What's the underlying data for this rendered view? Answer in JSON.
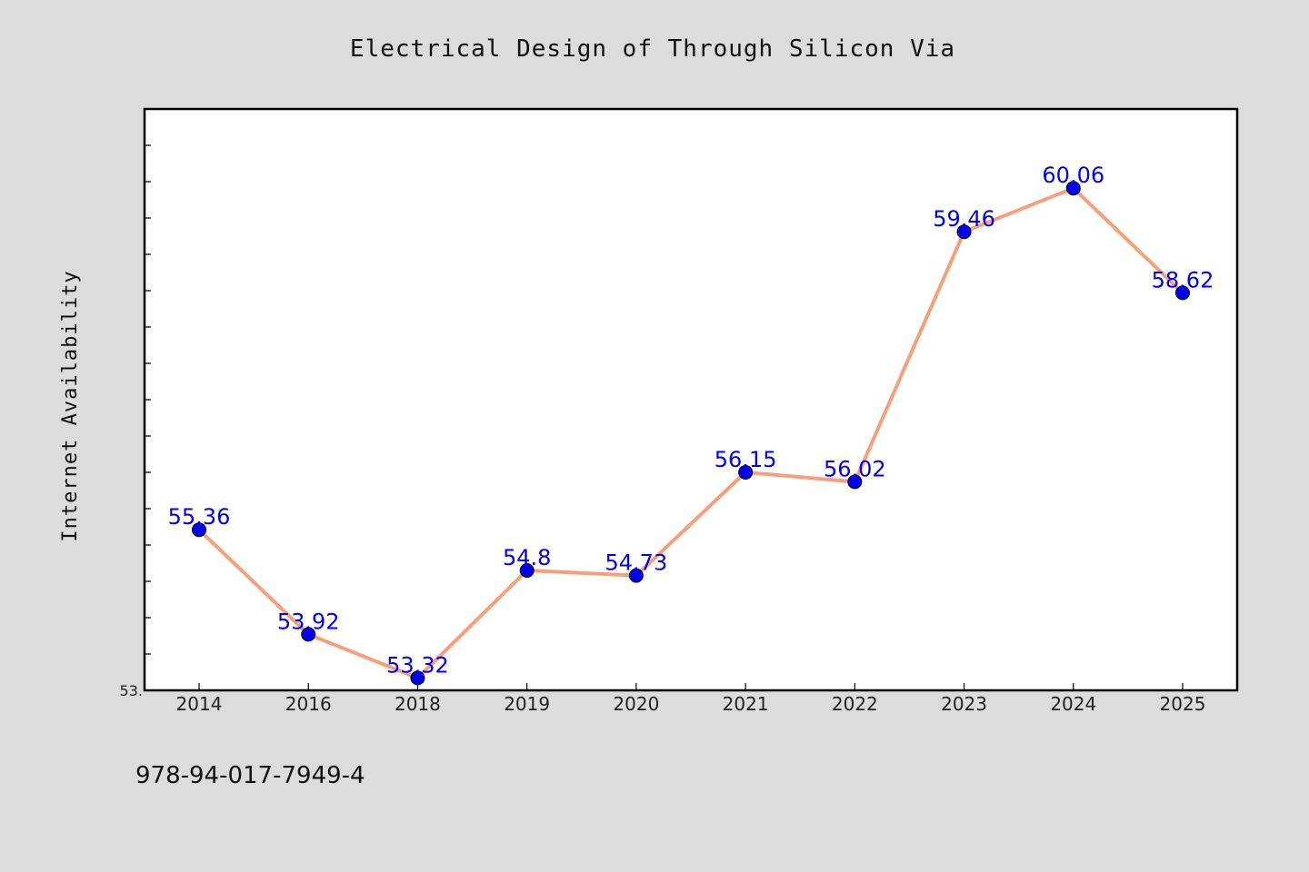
{
  "colors": {
    "background": "#dcdcdc",
    "plot_background": "#ffffff",
    "line": "#f5a07a",
    "marker": "#0000ee",
    "data_label": "#0000ee",
    "axis": "#000000"
  },
  "footer": {
    "code": "978-94-017-7949-4"
  },
  "chart_data": {
    "type": "line",
    "title": "Electrical Design of Through Silicon Via",
    "xlabel": "",
    "ylabel": "Internet Availability",
    "categories": [
      "2014",
      "2016",
      "2018",
      "2019",
      "2020",
      "2021",
      "2022",
      "2023",
      "2024",
      "2025"
    ],
    "series": [
      {
        "values": [
          55.36,
          53.92,
          53.32,
          54.8,
          54.73,
          56.15,
          56.02,
          59.46,
          60.06,
          58.62
        ],
        "labels": [
          "55.36",
          "53.92",
          "53.32",
          "54.8",
          "54.73",
          "56.15",
          "56.02",
          "59.46",
          "60.06",
          "58.62"
        ],
        "marker": "circle"
      }
    ],
    "ylim": [
      53.15,
      61.15
    ],
    "y_minor_step": 0.5,
    "y_tick_labels": [
      {
        "value": 53.15,
        "text": "53."
      }
    ],
    "grid": false,
    "legend": "none"
  }
}
